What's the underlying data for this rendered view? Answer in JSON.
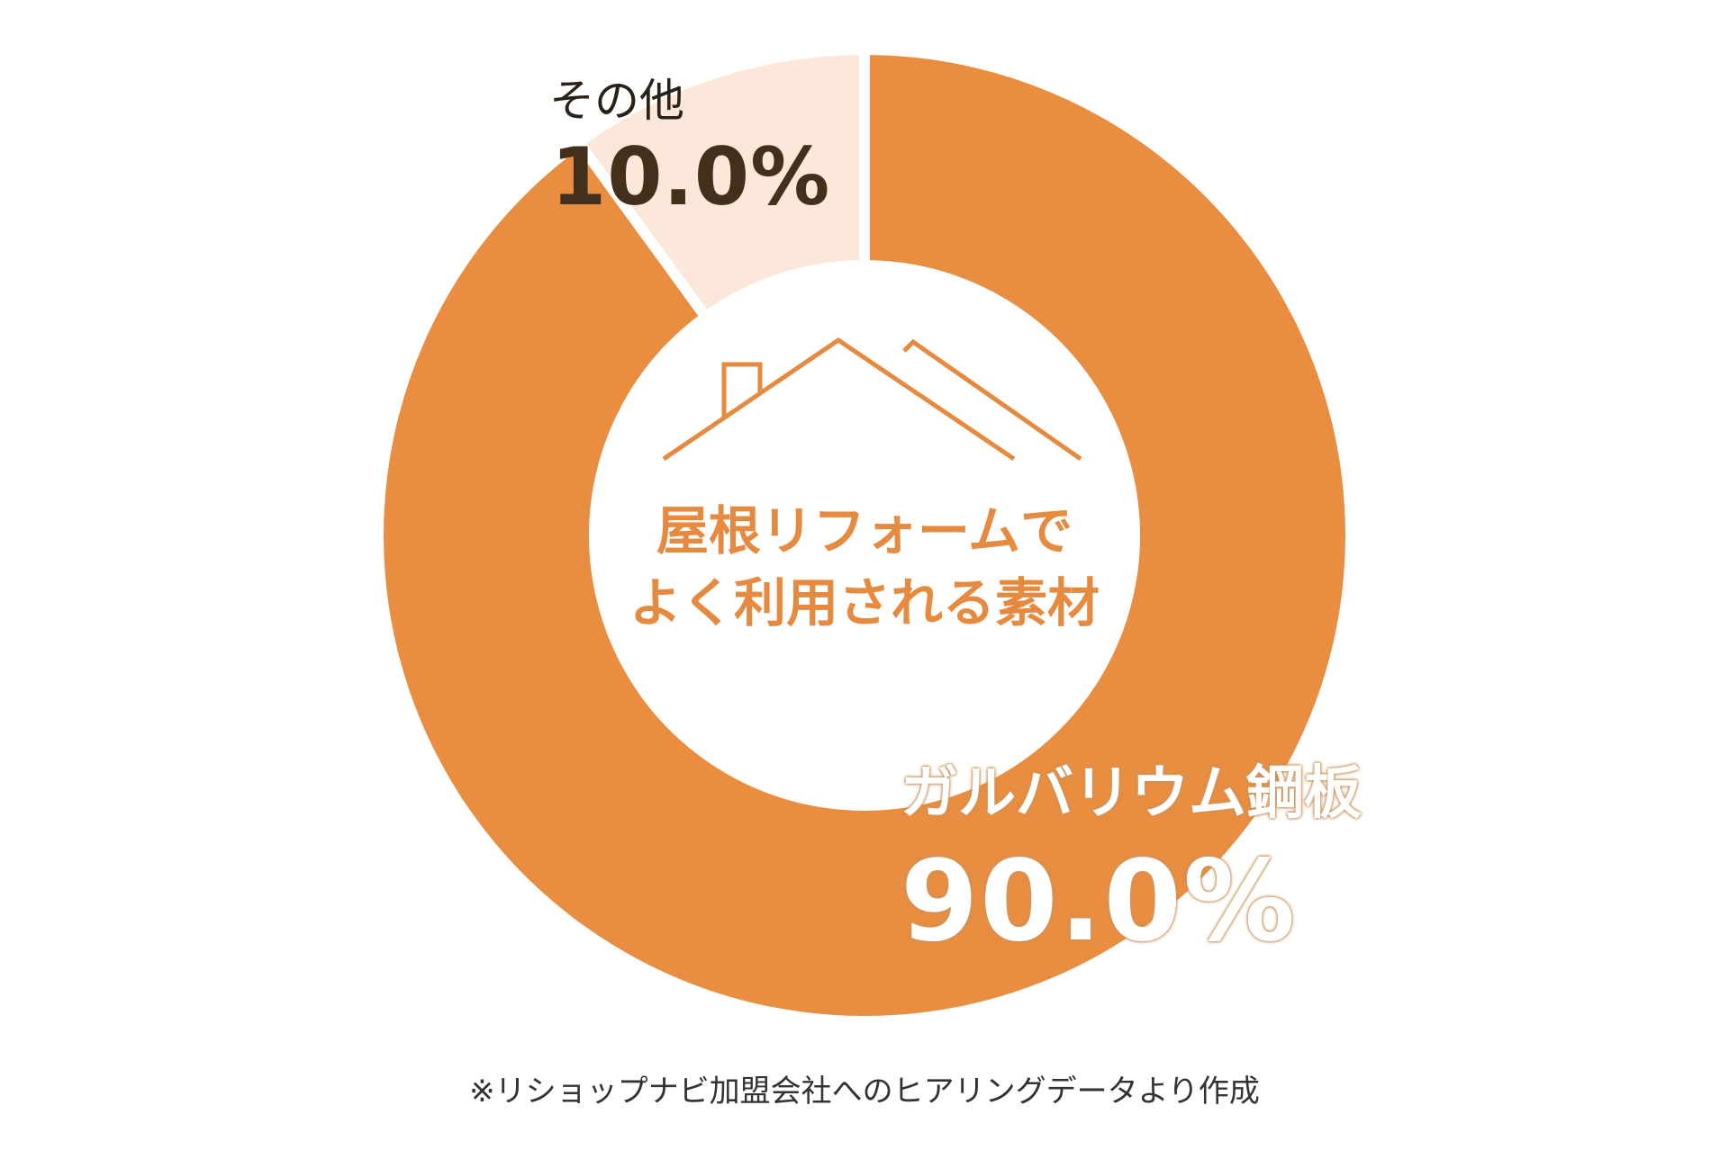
{
  "chart_data": {
    "type": "pie",
    "title": "",
    "categories": [
      "ガルバリウム鋼板",
      "その他"
    ],
    "values": [
      90.0,
      10.0
    ],
    "value_labels": [
      "90.0%",
      "10.0%"
    ],
    "colors": [
      "#e98d40",
      "#fbe8da"
    ]
  },
  "center": {
    "line1": "屋根リフォームで",
    "line2": "よく利用される素材"
  },
  "icons": {
    "house": "house-roof-icon"
  },
  "footnote": "※リショップナビ加盟会社へのヒアリングデータより作成"
}
